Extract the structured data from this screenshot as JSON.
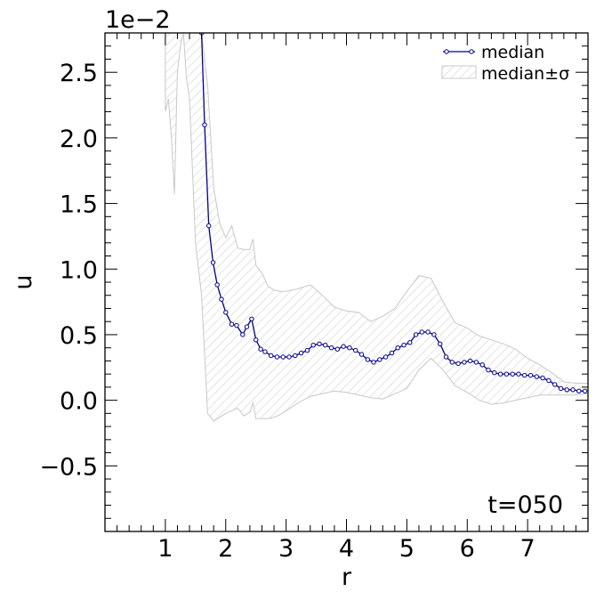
{
  "chart_data": {
    "type": "line",
    "xlabel": "r",
    "ylabel": "u",
    "offset_text": "1e−2",
    "annotation": "t=050",
    "xlim": [
      0,
      8
    ],
    "ylim": [
      -1.0,
      2.8
    ],
    "xticks": [
      1,
      2,
      3,
      4,
      5,
      6,
      7
    ],
    "xtick_labels": [
      "1",
      "2",
      "3",
      "4",
      "5",
      "6",
      "7"
    ],
    "yticks": [
      -0.5,
      0.0,
      0.5,
      1.0,
      1.5,
      2.0,
      2.5
    ],
    "ytick_labels": [
      "−0.5",
      "0.0",
      "0.5",
      "1.0",
      "1.5",
      "2.0",
      "2.5"
    ],
    "grid": false,
    "legend_position": "top-right",
    "colors": {
      "median": "#00008b",
      "band": "#c8c8c8",
      "hatch": "#d2d2d2"
    },
    "series": [
      {
        "name": "median",
        "x": [
          1.6,
          1.65,
          1.72,
          1.79,
          1.86,
          1.93,
          2.0,
          2.1,
          2.18,
          2.28,
          2.35,
          2.43,
          2.5,
          2.58,
          2.65,
          2.75,
          2.85,
          2.95,
          3.05,
          3.15,
          3.25,
          3.35,
          3.45,
          3.55,
          3.65,
          3.75,
          3.85,
          3.95,
          4.05,
          4.15,
          4.25,
          4.35,
          4.45,
          4.55,
          4.65,
          4.75,
          4.85,
          4.95,
          5.05,
          5.15,
          5.25,
          5.35,
          5.45,
          5.55,
          5.65,
          5.75,
          5.85,
          5.95,
          6.05,
          6.15,
          6.25,
          6.35,
          6.45,
          6.55,
          6.65,
          6.75,
          6.85,
          6.95,
          7.05,
          7.15,
          7.25,
          7.35,
          7.45,
          7.55,
          7.65,
          7.75,
          7.85,
          7.95
        ],
        "y": [
          2.8,
          2.1,
          1.33,
          1.05,
          0.88,
          0.77,
          0.67,
          0.58,
          0.57,
          0.5,
          0.56,
          0.62,
          0.46,
          0.39,
          0.37,
          0.34,
          0.33,
          0.33,
          0.33,
          0.34,
          0.36,
          0.38,
          0.42,
          0.43,
          0.42,
          0.4,
          0.39,
          0.41,
          0.4,
          0.38,
          0.35,
          0.31,
          0.29,
          0.31,
          0.33,
          0.36,
          0.4,
          0.42,
          0.44,
          0.5,
          0.52,
          0.52,
          0.5,
          0.43,
          0.33,
          0.29,
          0.28,
          0.29,
          0.3,
          0.29,
          0.27,
          0.23,
          0.21,
          0.2,
          0.2,
          0.2,
          0.2,
          0.19,
          0.19,
          0.18,
          0.17,
          0.15,
          0.12,
          0.09,
          0.08,
          0.08,
          0.07,
          0.07
        ]
      },
      {
        "name": "median±σ",
        "x": [
          1.0,
          1.05,
          1.1,
          1.15,
          1.2,
          1.25,
          1.3,
          1.35,
          1.4,
          1.5,
          1.6,
          1.7,
          1.8,
          1.9,
          2.0,
          2.1,
          2.2,
          2.3,
          2.4,
          2.45,
          2.5,
          2.6,
          2.7,
          2.8,
          2.9,
          3.0,
          3.2,
          3.4,
          3.6,
          3.8,
          4.0,
          4.2,
          4.4,
          4.6,
          4.8,
          5.0,
          5.2,
          5.4,
          5.6,
          5.8,
          6.0,
          6.2,
          6.4,
          6.6,
          6.8,
          7.0,
          7.2,
          7.4,
          7.6,
          7.8,
          8.0
        ],
        "upper": [
          2.8,
          2.8,
          2.8,
          2.8,
          2.8,
          2.8,
          2.8,
          2.8,
          2.8,
          2.8,
          2.8,
          2.4,
          1.62,
          1.35,
          1.24,
          1.33,
          1.16,
          1.15,
          1.15,
          1.23,
          1.03,
          0.97,
          0.87,
          0.84,
          0.83,
          0.83,
          0.85,
          0.88,
          0.8,
          0.71,
          0.68,
          0.67,
          0.6,
          0.64,
          0.7,
          0.83,
          0.95,
          0.93,
          0.75,
          0.59,
          0.55,
          0.49,
          0.46,
          0.43,
          0.39,
          0.32,
          0.27,
          0.21,
          0.14,
          0.13,
          0.13
        ],
        "lower": [
          2.2,
          2.3,
          2.0,
          1.57,
          2.5,
          2.7,
          2.8,
          2.45,
          2.3,
          1.2,
          0.8,
          -0.1,
          -0.16,
          -0.13,
          -0.1,
          -0.08,
          -0.06,
          -0.12,
          -0.09,
          -0.02,
          -0.14,
          -0.14,
          -0.14,
          -0.13,
          -0.11,
          -0.08,
          -0.02,
          0.03,
          0.05,
          0.07,
          0.06,
          0.04,
          0.02,
          0.01,
          0.05,
          0.09,
          0.23,
          0.32,
          0.23,
          0.11,
          0.06,
          0.0,
          -0.03,
          -0.02,
          -0.0,
          0.02,
          0.04,
          0.04,
          0.04,
          0.04,
          0.05
        ]
      }
    ]
  }
}
